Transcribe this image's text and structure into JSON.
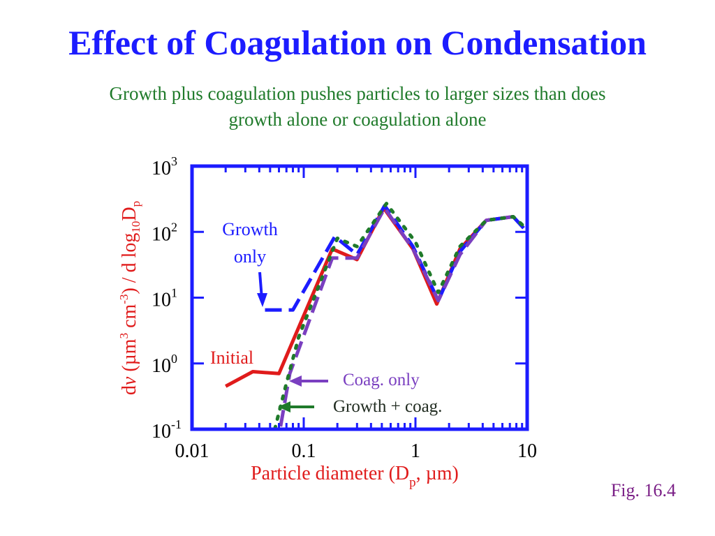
{
  "title": "Effect of Coagulation on Condensation",
  "subtitle": {
    "line1": "Growth plus coagulation pushes particles to larger sizes than does",
    "line2": "growth alone or coagulation alone"
  },
  "figure_label": "Fig. 16.4",
  "colors": {
    "title": "#1c1cff",
    "subtitle": "#1f7a2a",
    "axis": "#1c1cff",
    "axis_label": "#e01b1b",
    "initial": "#e01b1b",
    "growth_only": "#1c1cff",
    "coag_only": "#7a3fc0",
    "growth_coag": "#1f7a2a",
    "fig_label": "#7a1f86"
  },
  "chart_data": {
    "type": "line",
    "title": "",
    "xlabel": {
      "pre": "Particle diameter (D",
      "sub": "p",
      "post": ", µm)"
    },
    "ylabel": {
      "p1": "d",
      "v": "v",
      "p2": " (µm",
      "s1": "3",
      "p3": " cm",
      "s2": "-3",
      "p4": ") / d log",
      "s3": "10",
      "p5": "D",
      "s4": "p"
    },
    "xscale": "log",
    "yscale": "log",
    "xlim": [
      0.01,
      10
    ],
    "ylim": [
      0.1,
      1000
    ],
    "xticks": [
      {
        "value": 0.01,
        "label": "0.01"
      },
      {
        "value": 0.1,
        "label": "0.1"
      },
      {
        "value": 1,
        "label": "1"
      },
      {
        "value": 10,
        "label": "10"
      }
    ],
    "yticks": [
      {
        "value": 0.1,
        "base": "10",
        "exp": "-1"
      },
      {
        "value": 1,
        "base": "10",
        "exp": "0"
      },
      {
        "value": 10,
        "base": "10",
        "exp": "1"
      },
      {
        "value": 100,
        "base": "10",
        "exp": "2"
      },
      {
        "value": 1000,
        "base": "10",
        "exp": "3"
      }
    ],
    "series": [
      {
        "name": "Initial",
        "color": "#e01b1b",
        "dash": "solid",
        "x": [
          0.02,
          0.035,
          0.06,
          0.18,
          0.3,
          0.52,
          0.95,
          1.55,
          2.5,
          4.3,
          7.5
        ],
        "y": [
          0.45,
          0.75,
          0.7,
          55,
          38,
          230,
          55,
          8,
          55,
          150,
          170
        ]
      },
      {
        "name": "Growth only",
        "color": "#1c1cff",
        "dash": "dashed",
        "x": [
          0.045,
          0.052,
          0.08,
          0.19,
          0.3,
          0.53,
          0.95,
          1.6,
          2.5,
          4.3,
          7.5,
          10
        ],
        "y": [
          6.5,
          6.5,
          6.5,
          85,
          45,
          250,
          60,
          9,
          50,
          150,
          170,
          100
        ]
      },
      {
        "name": "Coag. only",
        "color": "#7a3fc0",
        "dash": "dashed",
        "x": [
          0.062,
          0.075,
          0.18,
          0.3,
          0.53,
          0.95,
          1.6,
          2.5,
          4.3,
          7.5
        ],
        "y": [
          0.11,
          0.7,
          40,
          40,
          230,
          55,
          9,
          45,
          150,
          170
        ]
      },
      {
        "name": "Growth + coag.",
        "color": "#1f7a2a",
        "dash": "dotted",
        "x": [
          0.055,
          0.07,
          0.09,
          0.2,
          0.3,
          0.55,
          1.0,
          1.6,
          2.5,
          4.3,
          7.5,
          10
        ],
        "y": [
          0.1,
          0.5,
          2.5,
          80,
          60,
          270,
          70,
          12,
          60,
          150,
          170,
          110
        ]
      }
    ],
    "annotations": {
      "growth_line1": "Growth",
      "growth_line2": "only",
      "initial": "Initial",
      "coag": "Coag. only",
      "growth_coag": "Growth + coag."
    },
    "grid": false,
    "legend": "none (inline annotations)"
  }
}
